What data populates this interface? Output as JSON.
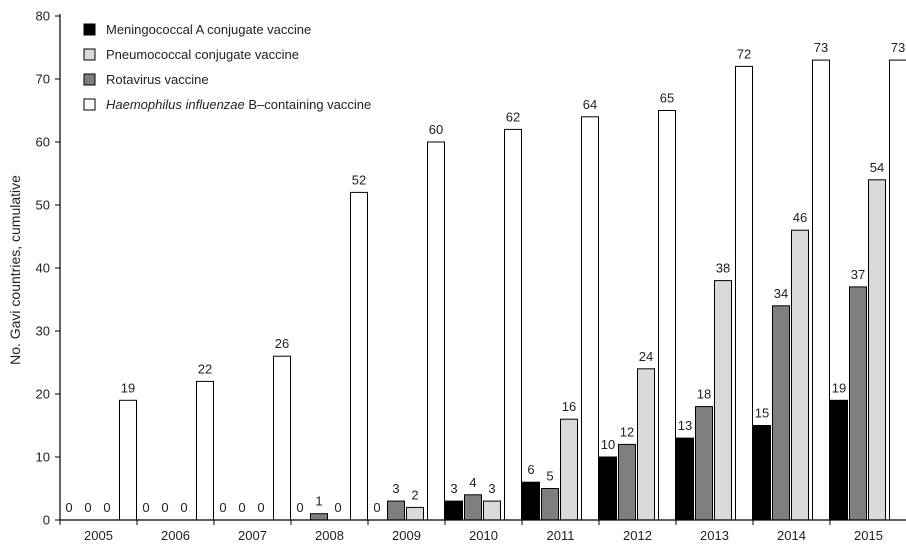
{
  "chart_data": {
    "type": "bar",
    "title": "",
    "xlabel": "",
    "ylabel": "No. Gavi countries, cumulative",
    "ylim": [
      0,
      80
    ],
    "yticks": [
      0,
      10,
      20,
      30,
      40,
      50,
      60,
      70,
      80
    ],
    "grid": false,
    "legend_position": "top-left",
    "categories": [
      "2005",
      "2006",
      "2007",
      "2008",
      "2009",
      "2010",
      "2011",
      "2012",
      "2013",
      "2014",
      "2015"
    ],
    "series": [
      {
        "name": "Meningococcal A conjugate vaccine",
        "legend_prefix": "",
        "legend_italic": "",
        "legend_suffix": "Meningococcal A conjugate vaccine",
        "color": "#000000",
        "values": [
          0,
          0,
          0,
          0,
          0,
          3,
          6,
          10,
          13,
          15,
          19
        ]
      },
      {
        "name": "Rotavirus vaccine",
        "legend_prefix": "",
        "legend_italic": "",
        "legend_suffix": "Rotavirus vaccine",
        "color": "#7f7f7f",
        "values": [
          0,
          0,
          0,
          1,
          3,
          4,
          5,
          12,
          18,
          34,
          37
        ]
      },
      {
        "name": "Pneumococcal conjugate vaccine",
        "legend_prefix": "",
        "legend_italic": "",
        "legend_suffix": "Pneumococcal conjugate vaccine",
        "color": "#d9d9d9",
        "values": [
          0,
          0,
          0,
          0,
          2,
          3,
          16,
          24,
          38,
          46,
          54
        ]
      },
      {
        "name": "Haemophilus influenzae B–containing vaccine",
        "legend_prefix": "",
        "legend_italic": "Haemophilus influenzae",
        "legend_suffix": " B–containing vaccine",
        "color": "#ffffff",
        "values": [
          19,
          22,
          26,
          52,
          60,
          62,
          64,
          65,
          72,
          73,
          73
        ]
      }
    ],
    "legend_order": [
      0,
      2,
      1,
      3
    ]
  }
}
